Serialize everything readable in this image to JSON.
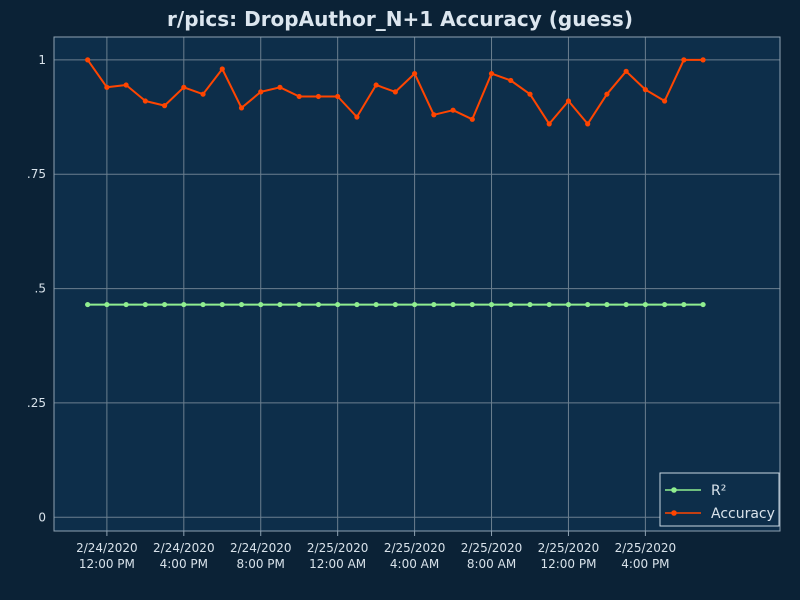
{
  "colors": {
    "page_background": "#0b2236",
    "plot_background": "#0d2e4a",
    "grid": "#6b7f8f",
    "frame": "#8fa3b3",
    "text": "#d8e2ea",
    "title": "#dce6ef",
    "r2": "#90ee90",
    "accuracy": "#ff4500"
  },
  "chart_data": {
    "type": "line",
    "title": "r/pics: DropAuthor_N+1 Accuracy (guess)",
    "xlabel": "",
    "ylabel": "",
    "grid": true,
    "legend_position": "bottom-right",
    "y_ticks": [
      {
        "value": 0,
        "label": "0"
      },
      {
        "value": 0.25,
        "label": ".25"
      },
      {
        "value": 0.5,
        "label": ".5"
      },
      {
        "value": 0.75,
        "label": ".75"
      },
      {
        "value": 1,
        "label": "1"
      }
    ],
    "ylim": [
      -0.03,
      1.05
    ],
    "xlim": [
      "2020-02-24 09:15",
      "2020-02-25 23:00"
    ],
    "x_ticks": [
      {
        "value": "2020-02-24 12:00",
        "date": "2/24/2020",
        "time": "12:00 PM"
      },
      {
        "value": "2020-02-24 16:00",
        "date": "2/24/2020",
        "time": "4:00 PM"
      },
      {
        "value": "2020-02-24 20:00",
        "date": "2/24/2020",
        "time": "8:00 PM"
      },
      {
        "value": "2020-02-25 00:00",
        "date": "2/25/2020",
        "time": "12:00 AM"
      },
      {
        "value": "2020-02-25 04:00",
        "date": "2/25/2020",
        "time": "4:00 AM"
      },
      {
        "value": "2020-02-25 08:00",
        "date": "2/25/2020",
        "time": "8:00 AM"
      },
      {
        "value": "2020-02-25 12:00",
        "date": "2/25/2020",
        "time": "12:00 PM"
      },
      {
        "value": "2020-02-25 16:00",
        "date": "2/25/2020",
        "time": "4:00 PM"
      }
    ],
    "x": [
      "2020-02-24 11:00",
      "2020-02-24 12:00",
      "2020-02-24 13:00",
      "2020-02-24 14:00",
      "2020-02-24 15:00",
      "2020-02-24 16:00",
      "2020-02-24 17:00",
      "2020-02-24 18:00",
      "2020-02-24 19:00",
      "2020-02-24 20:00",
      "2020-02-24 21:00",
      "2020-02-24 22:00",
      "2020-02-24 23:00",
      "2020-02-25 00:00",
      "2020-02-25 01:00",
      "2020-02-25 02:00",
      "2020-02-25 03:00",
      "2020-02-25 04:00",
      "2020-02-25 05:00",
      "2020-02-25 06:00",
      "2020-02-25 07:00",
      "2020-02-25 08:00",
      "2020-02-25 09:00",
      "2020-02-25 10:00",
      "2020-02-25 11:00",
      "2020-02-25 12:00",
      "2020-02-25 13:00",
      "2020-02-25 14:00",
      "2020-02-25 15:00",
      "2020-02-25 16:00",
      "2020-02-25 17:00",
      "2020-02-25 18:00",
      "2020-02-25 19:00"
    ],
    "series": [
      {
        "name": "R²",
        "color": "#90ee90",
        "values": [
          0.465,
          0.465,
          0.465,
          0.465,
          0.465,
          0.465,
          0.465,
          0.465,
          0.465,
          0.465,
          0.465,
          0.465,
          0.465,
          0.465,
          0.465,
          0.465,
          0.465,
          0.465,
          0.465,
          0.465,
          0.465,
          0.465,
          0.465,
          0.465,
          0.465,
          0.465,
          0.465,
          0.465,
          0.465,
          0.465,
          0.465,
          0.465,
          0.465
        ]
      },
      {
        "name": "Accuracy",
        "color": "#ff4500",
        "values": [
          1.0,
          0.94,
          0.945,
          0.91,
          0.9,
          0.94,
          0.925,
          0.98,
          0.895,
          0.93,
          0.94,
          0.92,
          0.92,
          0.92,
          0.875,
          0.945,
          0.93,
          0.97,
          0.88,
          0.89,
          0.87,
          0.97,
          0.955,
          0.925,
          0.86,
          0.91,
          0.86,
          0.925,
          0.975,
          0.935,
          0.91,
          1.0,
          1.0
        ]
      }
    ]
  }
}
